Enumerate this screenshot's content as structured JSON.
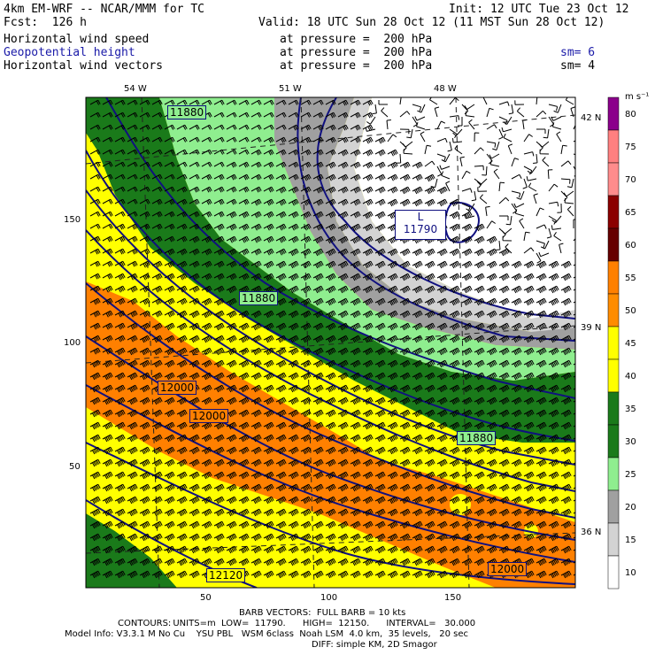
{
  "header": {
    "model": "4km EM-WRF -- NCAR/MMM for TC",
    "init": "Init: 12 UTC Tue 23 Oct 12",
    "fcst": "Fcst:  126 h",
    "valid": "Valid: 18 UTC Sun 28 Oct 12 (11 MST Sun 28 Oct 12)"
  },
  "fields": [
    {
      "name": "Horizontal wind speed",
      "level": "at pressure =  200 hPa",
      "sm": ""
    },
    {
      "name": "Geopotential height",
      "level": "at pressure =  200 hPa",
      "sm": "sm= 6"
    },
    {
      "name": "Horizontal wind vectors",
      "level": "at pressure =  200 hPa",
      "sm": "sm= 4"
    }
  ],
  "map": {
    "lon_labels": [
      "54 W",
      "51 W",
      "48 W"
    ],
    "lat_labels": [
      "42 N",
      "39 N",
      "36 N"
    ],
    "x_ticks": [
      "50",
      "100",
      "150"
    ],
    "y_ticks": [
      "150",
      "100",
      "50"
    ],
    "contour_labels": [
      "11880",
      "11880",
      "11880",
      "12000",
      "12000",
      "12120",
      "12000"
    ],
    "low_label": "L",
    "low_value": "11790"
  },
  "colorbar": {
    "units": "m s⁻¹",
    "levels": [
      "80",
      "75",
      "70",
      "65",
      "60",
      "55",
      "50",
      "45",
      "40",
      "35",
      "30",
      "25",
      "20",
      "15",
      "10"
    ],
    "colors": [
      "#8b008b",
      "#ff8080",
      "#ff8c8c",
      "#8b0000",
      "#660000",
      "#ff8000",
      "#ff8c00",
      "#ffff00",
      "#ffff00",
      "#1a7a1a",
      "#1a7a1a",
      "#8fee8f",
      "#a0a0a0",
      "#d3d3d3",
      "#ffffff"
    ]
  },
  "footer": {
    "barb": "BARB VECTORS:  FULL BARB = 10 kts",
    "contours_key": "CONTOURS:",
    "contours_rest": "  UNITS=m  LOW=  11790.      HIGH=  12150.      INTERVAL=   30.000",
    "model_info": "Model Info: V3.3.1 M No Cu    YSU PBL   WSM 6class  Noah LSM  4.0 km,  35 levels,   20 sec",
    "diff": "DIFF: simple KM, 2D Smagor"
  }
}
